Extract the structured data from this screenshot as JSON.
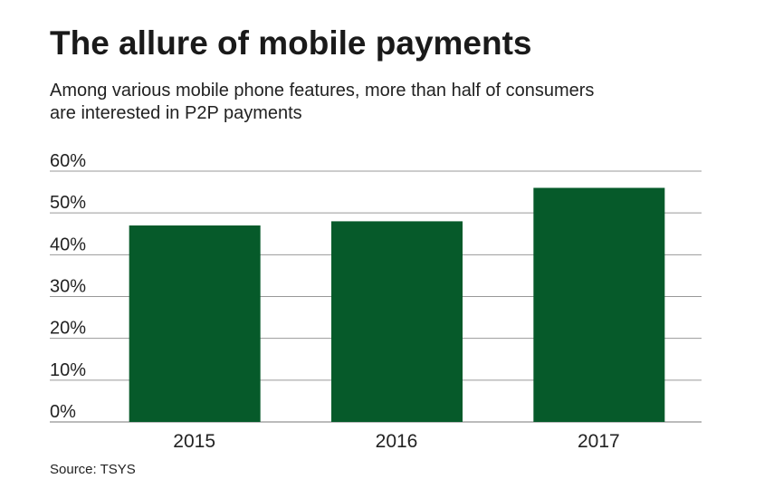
{
  "chart_data": {
    "type": "bar",
    "title": "The allure of mobile payments",
    "subtitle": [
      "Among various mobile phone features, more than half of consumers",
      "are interested in P2P payments"
    ],
    "source": "Source: TSYS",
    "categories": [
      "2015",
      "2016",
      "2017"
    ],
    "values": [
      47,
      48,
      56
    ],
    "color": "#065a2a",
    "ylim": [
      0,
      60
    ],
    "yticks": [
      {
        "value": 0,
        "label": "0%"
      },
      {
        "value": 10,
        "label": "10%"
      },
      {
        "value": 20,
        "label": "20%"
      },
      {
        "value": 30,
        "label": "30%"
      },
      {
        "value": 40,
        "label": "40%"
      },
      {
        "value": 50,
        "label": "50%"
      },
      {
        "value": 60,
        "label": "60%"
      }
    ],
    "grid": true
  }
}
